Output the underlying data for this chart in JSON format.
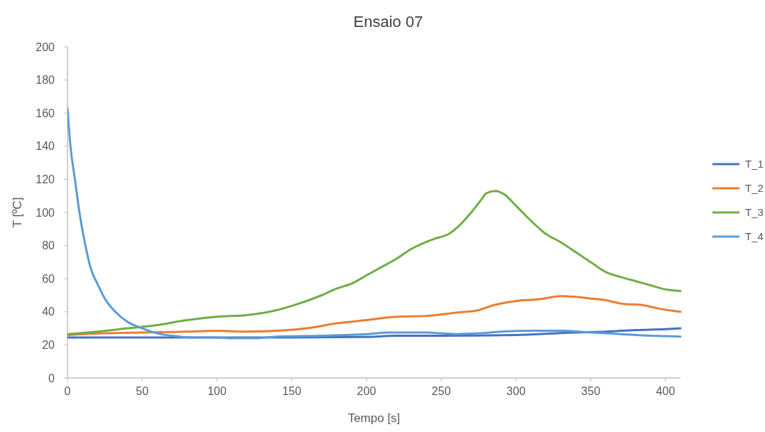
{
  "chart_data": {
    "type": "line",
    "title": "Ensaio 07",
    "xlabel": "Tempo [s]",
    "ylabel": "T [ºC]",
    "xlim": [
      0,
      410
    ],
    "xticks": [
      0,
      50,
      100,
      150,
      200,
      250,
      300,
      350,
      400
    ],
    "ylim": [
      0,
      200
    ],
    "yticks": [
      0,
      20,
      40,
      60,
      80,
      100,
      120,
      140,
      160,
      180,
      200
    ],
    "grid": false,
    "legend": "right",
    "marker": "none",
    "line_style": "solid",
    "series": [
      {
        "name": "T_1",
        "color": "#4472c4",
        "x": [
          0,
          50,
          100,
          150,
          200,
          220,
          250,
          300,
          340,
          360,
          380,
          400,
          410
        ],
        "values": [
          24.5,
          24.5,
          24.5,
          24.5,
          24.8,
          25.5,
          25.5,
          26,
          27.5,
          28,
          29,
          29.5,
          30
        ]
      },
      {
        "name": "T_2",
        "color": "#ed7d31",
        "x": [
          0,
          25,
          50,
          80,
          100,
          120,
          140,
          160,
          180,
          200,
          220,
          240,
          260,
          275,
          285,
          300,
          315,
          330,
          340,
          350,
          360,
          370,
          385,
          395,
          410
        ],
        "values": [
          26,
          27,
          27.5,
          28,
          28.5,
          28,
          28.5,
          30,
          33,
          35,
          37,
          37.5,
          39.5,
          41,
          44,
          46.5,
          47.5,
          49.5,
          49,
          48,
          47,
          45,
          44,
          42,
          40
        ]
      },
      {
        "name": "T_3",
        "color": "#70ad47",
        "x": [
          0,
          20,
          40,
          60,
          80,
          100,
          120,
          140,
          155,
          170,
          180,
          190,
          200,
          210,
          220,
          230,
          245,
          255,
          262,
          270,
          277,
          280,
          286,
          292,
          300,
          310,
          320,
          330,
          340,
          350,
          360,
          370,
          380,
          390,
          400,
          410
        ],
        "values": [
          26.5,
          28,
          30,
          32,
          35,
          37,
          38,
          41,
          45,
          50,
          54,
          57,
          62,
          67,
          72,
          78,
          84,
          87,
          92,
          100,
          108,
          111.5,
          113,
          111,
          104,
          95,
          87,
          82,
          76,
          70,
          64,
          61,
          58.5,
          56,
          53.5,
          52.5
        ]
      },
      {
        "name": "T_4",
        "color": "#5b9bd5",
        "x": [
          0,
          2,
          5,
          8,
          12,
          16,
          20,
          25,
          32,
          40,
          50,
          60,
          70,
          85,
          100,
          110,
          125,
          140,
          170,
          200,
          215,
          240,
          260,
          275,
          290,
          310,
          330,
          350,
          370,
          390,
          410
        ],
        "values": [
          163,
          140,
          120,
          100,
          80,
          65,
          57,
          48,
          40,
          34,
          30,
          27,
          25.5,
          24.5,
          24.5,
          24,
          24,
          25,
          25.5,
          26.5,
          27.5,
          27.5,
          26.5,
          27,
          28,
          28.5,
          28.5,
          27.5,
          26.5,
          25.5,
          25
        ]
      }
    ]
  }
}
